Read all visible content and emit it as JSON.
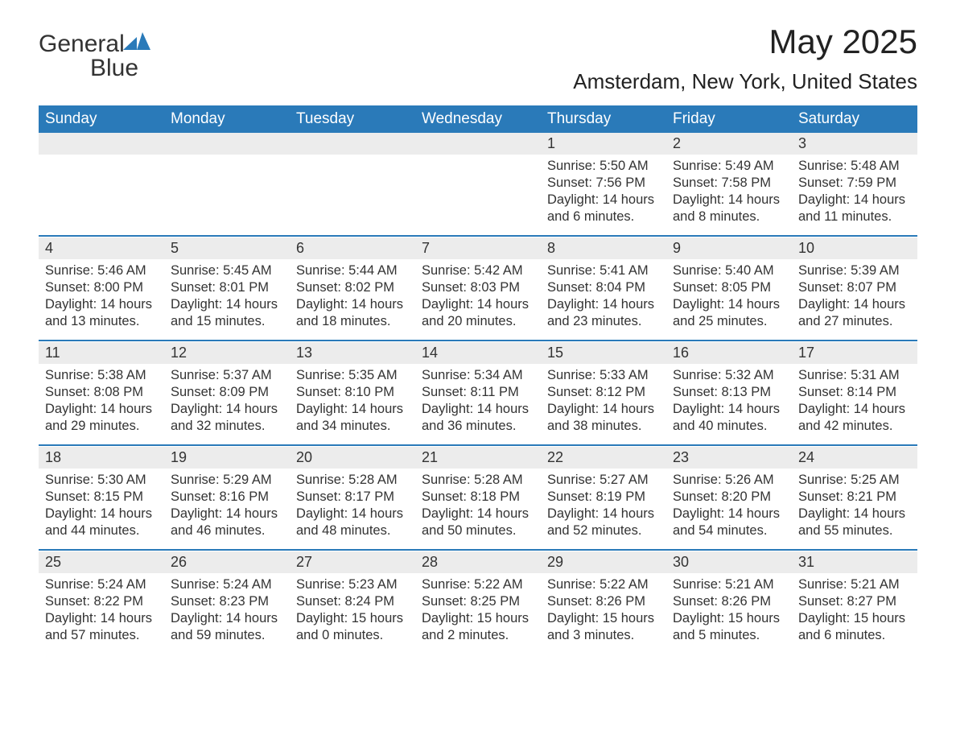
{
  "brand": {
    "name_part1": "General",
    "name_part2": "Blue"
  },
  "title": "May 2025",
  "location": "Amsterdam, New York, United States",
  "colors": {
    "header_bg": "#2a7ab9",
    "header_text": "#ffffff",
    "daynum_bg": "#ececec",
    "text": "#333333",
    "separator": "#2a7ab9",
    "page_bg": "#ffffff"
  },
  "typography": {
    "title_fontsize": 42,
    "location_fontsize": 26,
    "header_fontsize": 19,
    "daynum_fontsize": 18,
    "body_fontsize": 16.5
  },
  "layout": {
    "columns": 7,
    "rows": 5,
    "month_start_weekday": 4,
    "days_in_month": 31
  },
  "weekdays": [
    "Sunday",
    "Monday",
    "Tuesday",
    "Wednesday",
    "Thursday",
    "Friday",
    "Saturday"
  ],
  "days": [
    {
      "n": 1,
      "sunrise": "5:50 AM",
      "sunset": "7:56 PM",
      "daylight": "14 hours and 6 minutes."
    },
    {
      "n": 2,
      "sunrise": "5:49 AM",
      "sunset": "7:58 PM",
      "daylight": "14 hours and 8 minutes."
    },
    {
      "n": 3,
      "sunrise": "5:48 AM",
      "sunset": "7:59 PM",
      "daylight": "14 hours and 11 minutes."
    },
    {
      "n": 4,
      "sunrise": "5:46 AM",
      "sunset": "8:00 PM",
      "daylight": "14 hours and 13 minutes."
    },
    {
      "n": 5,
      "sunrise": "5:45 AM",
      "sunset": "8:01 PM",
      "daylight": "14 hours and 15 minutes."
    },
    {
      "n": 6,
      "sunrise": "5:44 AM",
      "sunset": "8:02 PM",
      "daylight": "14 hours and 18 minutes."
    },
    {
      "n": 7,
      "sunrise": "5:42 AM",
      "sunset": "8:03 PM",
      "daylight": "14 hours and 20 minutes."
    },
    {
      "n": 8,
      "sunrise": "5:41 AM",
      "sunset": "8:04 PM",
      "daylight": "14 hours and 23 minutes."
    },
    {
      "n": 9,
      "sunrise": "5:40 AM",
      "sunset": "8:05 PM",
      "daylight": "14 hours and 25 minutes."
    },
    {
      "n": 10,
      "sunrise": "5:39 AM",
      "sunset": "8:07 PM",
      "daylight": "14 hours and 27 minutes."
    },
    {
      "n": 11,
      "sunrise": "5:38 AM",
      "sunset": "8:08 PM",
      "daylight": "14 hours and 29 minutes."
    },
    {
      "n": 12,
      "sunrise": "5:37 AM",
      "sunset": "8:09 PM",
      "daylight": "14 hours and 32 minutes."
    },
    {
      "n": 13,
      "sunrise": "5:35 AM",
      "sunset": "8:10 PM",
      "daylight": "14 hours and 34 minutes."
    },
    {
      "n": 14,
      "sunrise": "5:34 AM",
      "sunset": "8:11 PM",
      "daylight": "14 hours and 36 minutes."
    },
    {
      "n": 15,
      "sunrise": "5:33 AM",
      "sunset": "8:12 PM",
      "daylight": "14 hours and 38 minutes."
    },
    {
      "n": 16,
      "sunrise": "5:32 AM",
      "sunset": "8:13 PM",
      "daylight": "14 hours and 40 minutes."
    },
    {
      "n": 17,
      "sunrise": "5:31 AM",
      "sunset": "8:14 PM",
      "daylight": "14 hours and 42 minutes."
    },
    {
      "n": 18,
      "sunrise": "5:30 AM",
      "sunset": "8:15 PM",
      "daylight": "14 hours and 44 minutes."
    },
    {
      "n": 19,
      "sunrise": "5:29 AM",
      "sunset": "8:16 PM",
      "daylight": "14 hours and 46 minutes."
    },
    {
      "n": 20,
      "sunrise": "5:28 AM",
      "sunset": "8:17 PM",
      "daylight": "14 hours and 48 minutes."
    },
    {
      "n": 21,
      "sunrise": "5:28 AM",
      "sunset": "8:18 PM",
      "daylight": "14 hours and 50 minutes."
    },
    {
      "n": 22,
      "sunrise": "5:27 AM",
      "sunset": "8:19 PM",
      "daylight": "14 hours and 52 minutes."
    },
    {
      "n": 23,
      "sunrise": "5:26 AM",
      "sunset": "8:20 PM",
      "daylight": "14 hours and 54 minutes."
    },
    {
      "n": 24,
      "sunrise": "5:25 AM",
      "sunset": "8:21 PM",
      "daylight": "14 hours and 55 minutes."
    },
    {
      "n": 25,
      "sunrise": "5:24 AM",
      "sunset": "8:22 PM",
      "daylight": "14 hours and 57 minutes."
    },
    {
      "n": 26,
      "sunrise": "5:24 AM",
      "sunset": "8:23 PM",
      "daylight": "14 hours and 59 minutes."
    },
    {
      "n": 27,
      "sunrise": "5:23 AM",
      "sunset": "8:24 PM",
      "daylight": "15 hours and 0 minutes."
    },
    {
      "n": 28,
      "sunrise": "5:22 AM",
      "sunset": "8:25 PM",
      "daylight": "15 hours and 2 minutes."
    },
    {
      "n": 29,
      "sunrise": "5:22 AM",
      "sunset": "8:26 PM",
      "daylight": "15 hours and 3 minutes."
    },
    {
      "n": 30,
      "sunrise": "5:21 AM",
      "sunset": "8:26 PM",
      "daylight": "15 hours and 5 minutes."
    },
    {
      "n": 31,
      "sunrise": "5:21 AM",
      "sunset": "8:27 PM",
      "daylight": "15 hours and 6 minutes."
    }
  ],
  "labels": {
    "sunrise": "Sunrise:",
    "sunset": "Sunset:",
    "daylight": "Daylight:"
  }
}
